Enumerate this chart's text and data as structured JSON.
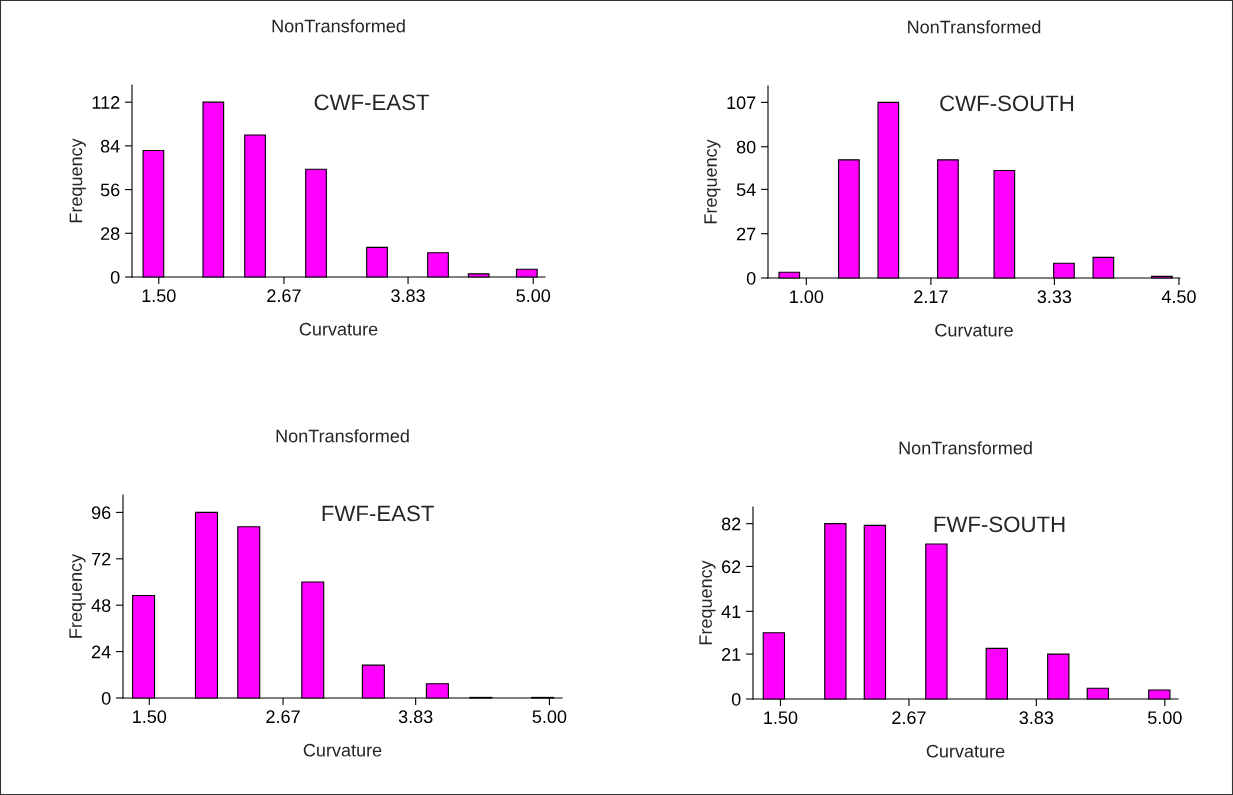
{
  "chart_data": [
    {
      "type": "bar",
      "title": "NonTransformed",
      "subtitle": "CWF-EAST",
      "xlabel": "Curvature",
      "ylabel": "Frequency",
      "color": "#ff00ff",
      "x": [
        1.45,
        2.01,
        2.4,
        2.97,
        3.54,
        4.11,
        4.49,
        4.94
      ],
      "values": [
        81,
        112,
        91,
        69,
        19,
        15.5,
        2,
        5
      ],
      "xlim": [
        1.25,
        5.11
      ],
      "xticks": [
        {
          "value": 1.5,
          "label": "1.50"
        },
        2.67,
        3.83,
        {
          "value": 5.0,
          "label": "5.00"
        }
      ],
      "ylim": [
        0,
        123
      ],
      "yticks": [
        0,
        28,
        56,
        84,
        112
      ],
      "grid": false,
      "legend": false
    },
    {
      "type": "bar",
      "title": "NonTransformed",
      "subtitle": "CWF-SOUTH",
      "xlabel": "Curvature",
      "ylabel": "Frequency",
      "color": "#ff00ff",
      "x": [
        0.84,
        1.4,
        1.77,
        2.33,
        2.86,
        3.42,
        3.79,
        4.34
      ],
      "values": [
        3.5,
        72,
        107,
        72,
        65.5,
        9,
        12.6,
        1
      ],
      "xlim": [
        0.64,
        4.51
      ],
      "xticks": [
        {
          "value": 1.0,
          "label": "1.00"
        },
        2.17,
        3.33,
        {
          "value": 4.5,
          "label": "4.50"
        }
      ],
      "ylim": [
        0,
        117
      ],
      "yticks": [
        0,
        27,
        54,
        80,
        107
      ],
      "grid": false,
      "legend": false
    },
    {
      "type": "bar",
      "title": "NonTransformed",
      "subtitle": "FWF-EAST",
      "xlabel": "Curvature",
      "ylabel": "Frequency",
      "color": "#ff00ff",
      "x": [
        1.45,
        2.0,
        2.37,
        2.93,
        3.46,
        4.02,
        4.4,
        4.94
      ],
      "values": [
        53,
        96,
        88.6,
        60,
        17,
        7.4,
        0.3,
        0.3
      ],
      "xlim": [
        1.27,
        5.11
      ],
      "xticks": [
        {
          "value": 1.5,
          "label": "1.50"
        },
        2.67,
        3.83,
        {
          "value": 5.0,
          "label": "5.00"
        }
      ],
      "ylim": [
        0,
        105
      ],
      "yticks": [
        0,
        24,
        48,
        72,
        96
      ],
      "grid": false,
      "legend": false
    },
    {
      "type": "bar",
      "title": "NonTransformed",
      "subtitle": "FWF-SOUTH",
      "xlabel": "Curvature",
      "ylabel": "Frequency",
      "color": "#ff00ff",
      "x": [
        1.44,
        2.0,
        2.36,
        2.92,
        3.47,
        4.03,
        4.39,
        4.95
      ],
      "values": [
        31,
        82,
        81.2,
        72.5,
        23.7,
        21,
        5,
        4.2
      ],
      "xlim": [
        1.25,
        5.12
      ],
      "xticks": [
        {
          "value": 1.5,
          "label": "1.50"
        },
        2.67,
        3.83,
        {
          "value": 5.0,
          "label": "5.00"
        }
      ],
      "ylim": [
        0,
        89.8
      ],
      "yticks": [
        0,
        21,
        41,
        62,
        82
      ],
      "grid": false,
      "legend": false
    }
  ]
}
